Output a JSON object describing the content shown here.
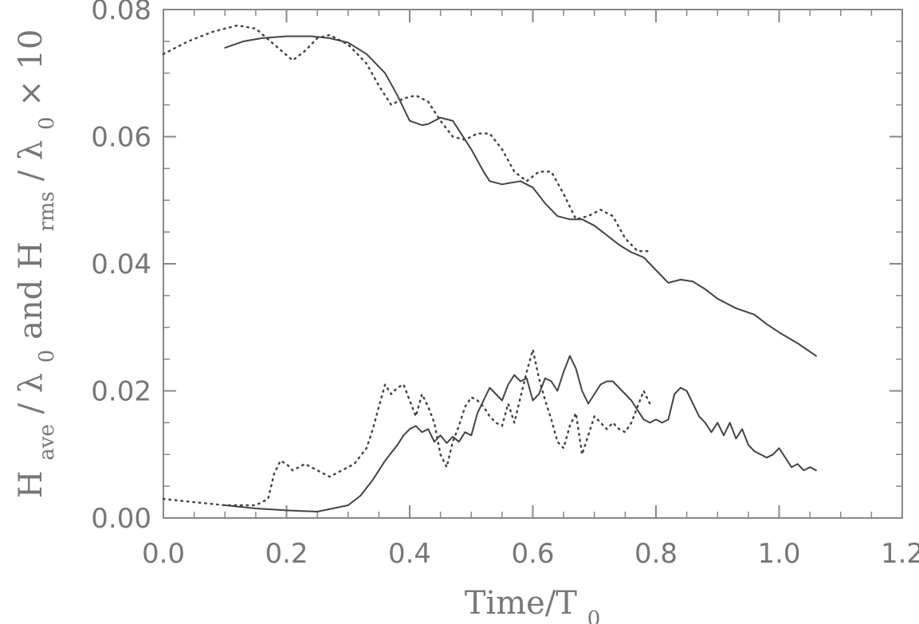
{
  "chart_data": {
    "type": "line",
    "xlabel": "Time/T",
    "xlabel_sub": "0",
    "ylabel": {
      "h1": "H",
      "h1_sub": "ave",
      "slash1": "/",
      "lam1": "λ",
      "lam1_sub": "0",
      "and": " and H",
      "h2_sub": "rms",
      "slash2": "/",
      "lam2": "λ",
      "lam2_sub": "0",
      "times": " × 10"
    },
    "xlim": [
      0.0,
      1.2
    ],
    "ylim": [
      0.0,
      0.08
    ],
    "x_ticks": [
      0.0,
      0.2,
      0.4,
      0.6,
      0.8,
      1.0,
      1.2
    ],
    "x_tick_labels": [
      "0.0",
      "0.2",
      "0.4",
      "0.6",
      "0.8",
      "1.0",
      "1.2"
    ],
    "y_ticks": [
      0.0,
      0.02,
      0.04,
      0.06,
      0.08
    ],
    "y_tick_labels": [
      "0.00",
      "0.02",
      "0.04",
      "0.06",
      "0.08"
    ],
    "series": [
      {
        "style": "solid",
        "points": [
          [
            0.1,
            0.074
          ],
          [
            0.13,
            0.075
          ],
          [
            0.16,
            0.0755
          ],
          [
            0.2,
            0.0758
          ],
          [
            0.24,
            0.0758
          ],
          [
            0.27,
            0.0755
          ],
          [
            0.3,
            0.0748
          ],
          [
            0.33,
            0.073
          ],
          [
            0.36,
            0.07
          ],
          [
            0.38,
            0.0665
          ],
          [
            0.4,
            0.0625
          ],
          [
            0.42,
            0.0618
          ],
          [
            0.43,
            0.062
          ],
          [
            0.45,
            0.063
          ],
          [
            0.47,
            0.0625
          ],
          [
            0.5,
            0.058
          ],
          [
            0.52,
            0.0545
          ],
          [
            0.53,
            0.053
          ],
          [
            0.55,
            0.0525
          ],
          [
            0.58,
            0.053
          ],
          [
            0.6,
            0.052
          ],
          [
            0.62,
            0.0495
          ],
          [
            0.64,
            0.0475
          ],
          [
            0.66,
            0.047
          ],
          [
            0.68,
            0.047
          ],
          [
            0.7,
            0.046
          ],
          [
            0.72,
            0.0445
          ],
          [
            0.74,
            0.043
          ],
          [
            0.76,
            0.0418
          ],
          [
            0.78,
            0.041
          ],
          [
            0.8,
            0.039
          ],
          [
            0.82,
            0.037
          ],
          [
            0.84,
            0.0375
          ],
          [
            0.86,
            0.0372
          ],
          [
            0.88,
            0.036
          ],
          [
            0.9,
            0.0345
          ],
          [
            0.93,
            0.033
          ],
          [
            0.96,
            0.032
          ],
          [
            0.98,
            0.0305
          ],
          [
            1.0,
            0.0292
          ],
          [
            1.03,
            0.0275
          ],
          [
            1.06,
            0.0255
          ]
        ]
      },
      {
        "style": "dotted",
        "points": [
          [
            0.0,
            0.073
          ],
          [
            0.04,
            0.075
          ],
          [
            0.08,
            0.0765
          ],
          [
            0.12,
            0.0775
          ],
          [
            0.15,
            0.077
          ],
          [
            0.18,
            0.0745
          ],
          [
            0.21,
            0.072
          ],
          [
            0.23,
            0.0735
          ],
          [
            0.25,
            0.0755
          ],
          [
            0.27,
            0.076
          ],
          [
            0.3,
            0.0745
          ],
          [
            0.33,
            0.0715
          ],
          [
            0.35,
            0.068
          ],
          [
            0.37,
            0.065
          ],
          [
            0.39,
            0.066
          ],
          [
            0.41,
            0.0665
          ],
          [
            0.43,
            0.0655
          ],
          [
            0.45,
            0.0625
          ],
          [
            0.47,
            0.06
          ],
          [
            0.49,
            0.0595
          ],
          [
            0.51,
            0.0605
          ],
          [
            0.53,
            0.0605
          ],
          [
            0.55,
            0.058
          ],
          [
            0.57,
            0.0545
          ],
          [
            0.59,
            0.053
          ],
          [
            0.61,
            0.0545
          ],
          [
            0.63,
            0.0545
          ],
          [
            0.65,
            0.051
          ],
          [
            0.67,
            0.047
          ],
          [
            0.69,
            0.0475
          ],
          [
            0.71,
            0.0485
          ],
          [
            0.73,
            0.0475
          ],
          [
            0.75,
            0.044
          ],
          [
            0.77,
            0.042
          ],
          [
            0.79,
            0.042
          ]
        ]
      },
      {
        "style": "solid",
        "points": [
          [
            0.1,
            0.002
          ],
          [
            0.15,
            0.0015
          ],
          [
            0.2,
            0.0012
          ],
          [
            0.25,
            0.001
          ],
          [
            0.3,
            0.002
          ],
          [
            0.32,
            0.0035
          ],
          [
            0.34,
            0.006
          ],
          [
            0.36,
            0.009
          ],
          [
            0.38,
            0.0115
          ],
          [
            0.39,
            0.013
          ],
          [
            0.4,
            0.014
          ],
          [
            0.41,
            0.0145
          ],
          [
            0.42,
            0.0135
          ],
          [
            0.43,
            0.014
          ],
          [
            0.44,
            0.012
          ],
          [
            0.45,
            0.013
          ],
          [
            0.46,
            0.0118
          ],
          [
            0.47,
            0.0128
          ],
          [
            0.48,
            0.012
          ],
          [
            0.49,
            0.0135
          ],
          [
            0.5,
            0.013
          ],
          [
            0.51,
            0.0165
          ],
          [
            0.52,
            0.0185
          ],
          [
            0.53,
            0.0205
          ],
          [
            0.54,
            0.0195
          ],
          [
            0.55,
            0.0185
          ],
          [
            0.56,
            0.021
          ],
          [
            0.57,
            0.0225
          ],
          [
            0.58,
            0.0215
          ],
          [
            0.59,
            0.022
          ],
          [
            0.6,
            0.0185
          ],
          [
            0.61,
            0.0195
          ],
          [
            0.62,
            0.022
          ],
          [
            0.63,
            0.0215
          ],
          [
            0.64,
            0.02
          ],
          [
            0.65,
            0.023
          ],
          [
            0.66,
            0.0255
          ],
          [
            0.67,
            0.0235
          ],
          [
            0.68,
            0.02
          ],
          [
            0.69,
            0.018
          ],
          [
            0.7,
            0.0195
          ],
          [
            0.71,
            0.021
          ],
          [
            0.72,
            0.0215
          ],
          [
            0.73,
            0.0215
          ],
          [
            0.74,
            0.0205
          ],
          [
            0.75,
            0.0195
          ],
          [
            0.76,
            0.0185
          ],
          [
            0.77,
            0.017
          ],
          [
            0.78,
            0.0155
          ],
          [
            0.79,
            0.015
          ],
          [
            0.8,
            0.0155
          ],
          [
            0.81,
            0.015
          ],
          [
            0.82,
            0.0155
          ],
          [
            0.83,
            0.0195
          ],
          [
            0.84,
            0.0205
          ],
          [
            0.85,
            0.02
          ],
          [
            0.86,
            0.018
          ],
          [
            0.87,
            0.016
          ],
          [
            0.88,
            0.015
          ],
          [
            0.89,
            0.0135
          ],
          [
            0.9,
            0.015
          ],
          [
            0.91,
            0.013
          ],
          [
            0.92,
            0.015
          ],
          [
            0.93,
            0.0125
          ],
          [
            0.94,
            0.014
          ],
          [
            0.95,
            0.0115
          ],
          [
            0.96,
            0.0105
          ],
          [
            0.97,
            0.01
          ],
          [
            0.98,
            0.0095
          ],
          [
            0.99,
            0.01
          ],
          [
            1.0,
            0.011
          ],
          [
            1.01,
            0.0095
          ],
          [
            1.02,
            0.008
          ],
          [
            1.03,
            0.0085
          ],
          [
            1.04,
            0.0075
          ],
          [
            1.05,
            0.008
          ],
          [
            1.06,
            0.0075
          ]
        ]
      },
      {
        "style": "dotted",
        "points": [
          [
            0.0,
            0.003
          ],
          [
            0.05,
            0.0025
          ],
          [
            0.1,
            0.002
          ],
          [
            0.15,
            0.002
          ],
          [
            0.17,
            0.003
          ],
          [
            0.18,
            0.007
          ],
          [
            0.19,
            0.009
          ],
          [
            0.2,
            0.0085
          ],
          [
            0.21,
            0.0075
          ],
          [
            0.22,
            0.008
          ],
          [
            0.23,
            0.0085
          ],
          [
            0.25,
            0.0075
          ],
          [
            0.27,
            0.0065
          ],
          [
            0.29,
            0.0075
          ],
          [
            0.31,
            0.0085
          ],
          [
            0.33,
            0.011
          ],
          [
            0.34,
            0.014
          ],
          [
            0.35,
            0.0175
          ],
          [
            0.36,
            0.021
          ],
          [
            0.37,
            0.0195
          ],
          [
            0.38,
            0.0205
          ],
          [
            0.39,
            0.021
          ],
          [
            0.4,
            0.0185
          ],
          [
            0.41,
            0.016
          ],
          [
            0.42,
            0.0195
          ],
          [
            0.43,
            0.0175
          ],
          [
            0.44,
            0.015
          ],
          [
            0.45,
            0.01
          ],
          [
            0.46,
            0.008
          ],
          [
            0.47,
            0.012
          ],
          [
            0.48,
            0.0145
          ],
          [
            0.49,
            0.0175
          ],
          [
            0.5,
            0.019
          ],
          [
            0.51,
            0.0185
          ],
          [
            0.52,
            0.0175
          ],
          [
            0.53,
            0.016
          ],
          [
            0.54,
            0.015
          ],
          [
            0.55,
            0.0145
          ],
          [
            0.56,
            0.018
          ],
          [
            0.57,
            0.015
          ],
          [
            0.58,
            0.019
          ],
          [
            0.59,
            0.023
          ],
          [
            0.6,
            0.0265
          ],
          [
            0.61,
            0.022
          ],
          [
            0.62,
            0.0185
          ],
          [
            0.63,
            0.0155
          ],
          [
            0.64,
            0.012
          ],
          [
            0.65,
            0.011
          ],
          [
            0.66,
            0.0145
          ],
          [
            0.67,
            0.0165
          ],
          [
            0.68,
            0.01
          ],
          [
            0.69,
            0.013
          ],
          [
            0.7,
            0.016
          ],
          [
            0.71,
            0.015
          ],
          [
            0.72,
            0.014
          ],
          [
            0.73,
            0.015
          ],
          [
            0.74,
            0.014
          ],
          [
            0.75,
            0.0135
          ],
          [
            0.76,
            0.015
          ],
          [
            0.77,
            0.0175
          ],
          [
            0.78,
            0.02
          ],
          [
            0.79,
            0.018
          ]
        ]
      }
    ],
    "grid": false,
    "legend": "none"
  }
}
